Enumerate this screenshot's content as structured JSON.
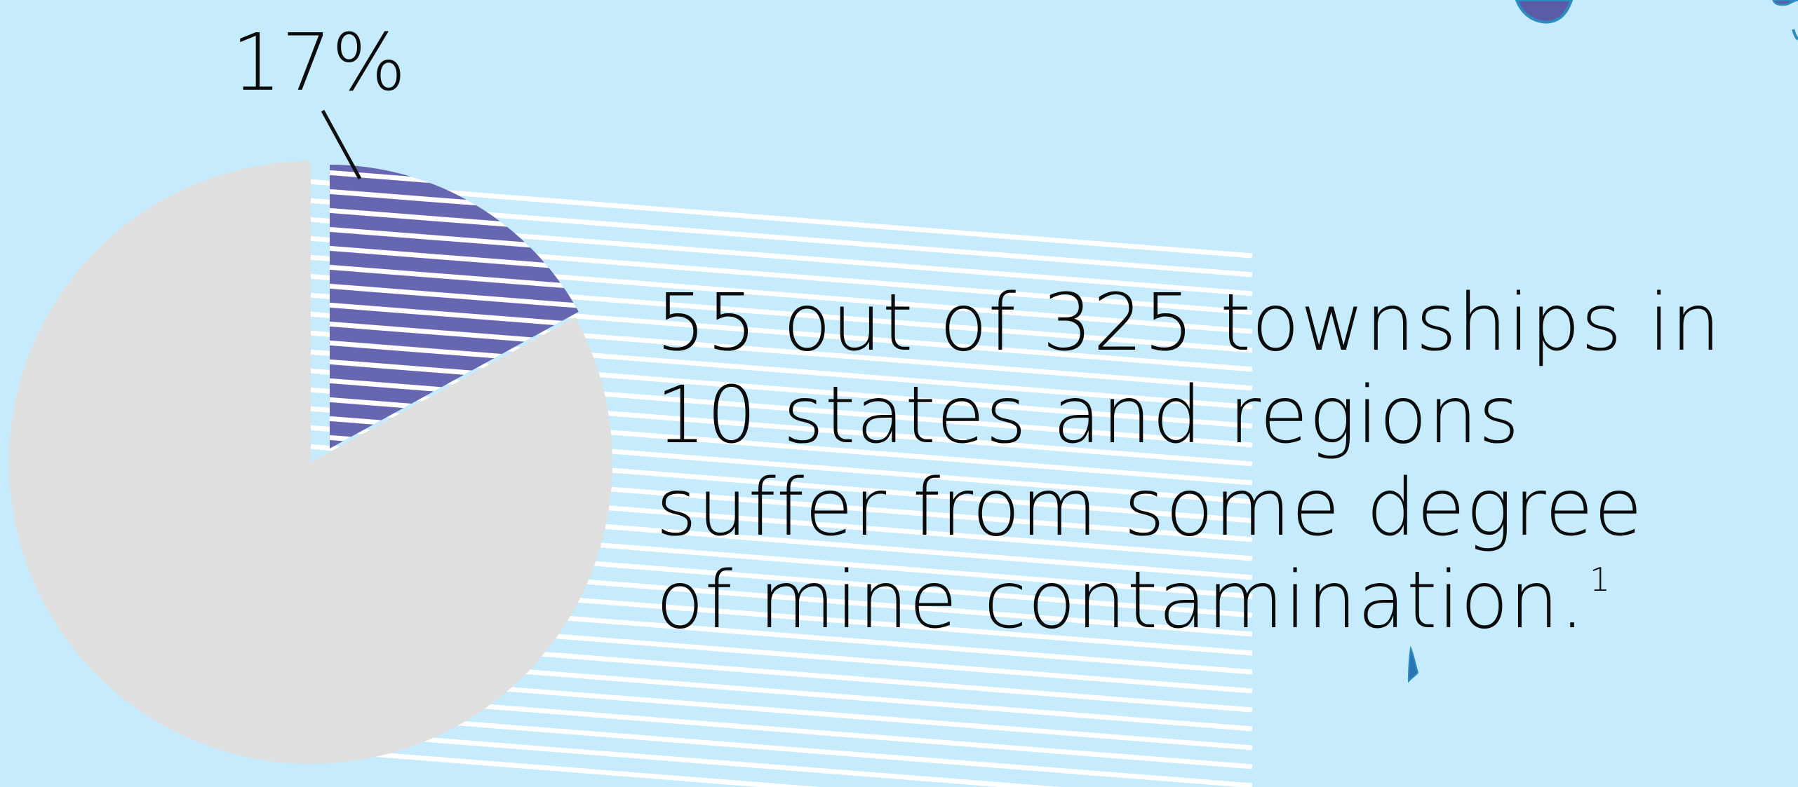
{
  "chart_data": {
    "type": "pie",
    "slices": [
      {
        "label": "17%",
        "value": 17,
        "color": "#6767b1"
      },
      {
        "value": 83,
        "color": "#dfdfdf"
      }
    ],
    "label_17": "17%"
  },
  "statement": {
    "line1": "55 out of 325 townships in",
    "line2": "10 states and regions",
    "line3": "suffer from some degree",
    "line4": "of mine contamination.",
    "footnote": "1"
  },
  "colors": {
    "background": "#c6ebfd",
    "highlight_slice": "#6767b1",
    "main_slice": "#dfdfdf",
    "stripes": "#ffffff",
    "map_shapes": "#5b5ba8",
    "map_outline": "#2d8cbf"
  }
}
